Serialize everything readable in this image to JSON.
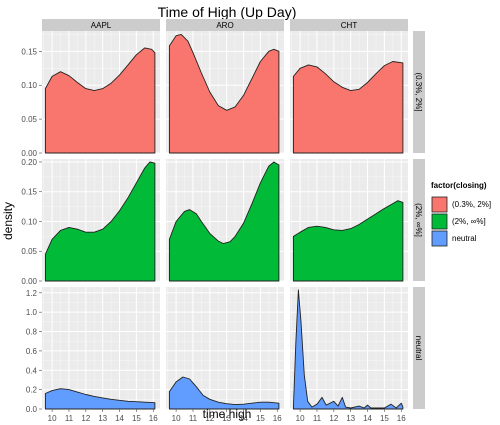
{
  "chart_data": {
    "type": "area",
    "title": "Time of High (Up Day)",
    "xlabel": "time.high",
    "ylabel": "density",
    "x_ticks": [
      10,
      11,
      12,
      13,
      14,
      15,
      16
    ],
    "xlim": [
      9.4,
      16.4
    ],
    "columns": [
      "AAPL",
      "ARO",
      "CHT"
    ],
    "rows": [
      {
        "label": "(0.3%, 2%]",
        "color": "#f8766d",
        "ylim": [
          0,
          0.18
        ],
        "ticks": [
          0.0,
          0.05,
          0.1,
          0.15
        ],
        "tick_labels": [
          "0.00",
          "0.05",
          "0.10",
          "0.15"
        ]
      },
      {
        "label": "(2%, ∞%]",
        "color": "#00ba38",
        "ylim": [
          0,
          0.205
        ],
        "ticks": [
          0.0,
          0.05,
          0.1,
          0.15,
          0.2
        ],
        "tick_labels": [
          "0.00",
          "0.05",
          "0.10",
          "0.15",
          "0.20"
        ]
      },
      {
        "label": "neutral",
        "color": "#619cff",
        "ylim": [
          0,
          1.26
        ],
        "ticks": [
          0.0,
          0.2,
          0.4,
          0.6,
          0.8,
          1.0,
          1.2
        ],
        "tick_labels": [
          "0.0",
          "0.2",
          "0.4",
          "0.6",
          "0.8",
          "1.0",
          "1.2"
        ]
      }
    ],
    "legend": {
      "title": "factor(closing)",
      "placement": "right",
      "entries": [
        {
          "label": "(0.3%, 2%]",
          "color": "#f8766d"
        },
        {
          "label": "(2%, ∞%]",
          "color": "#00ba38"
        },
        {
          "label": "neutral",
          "color": "#619cff"
        }
      ]
    },
    "panels": [
      {
        "column": "AAPL",
        "row": "(0.3%, 2%]",
        "points": [
          [
            9.6,
            0.095
          ],
          [
            10,
            0.113
          ],
          [
            10.5,
            0.12
          ],
          [
            11,
            0.114
          ],
          [
            11.5,
            0.104
          ],
          [
            12,
            0.095
          ],
          [
            12.5,
            0.092
          ],
          [
            13,
            0.095
          ],
          [
            13.5,
            0.103
          ],
          [
            14,
            0.115
          ],
          [
            14.5,
            0.13
          ],
          [
            15,
            0.145
          ],
          [
            15.5,
            0.155
          ],
          [
            15.9,
            0.153
          ],
          [
            16.1,
            0.148
          ]
        ]
      },
      {
        "column": "ARO",
        "row": "(0.3%, 2%]",
        "points": [
          [
            9.6,
            0.158
          ],
          [
            10,
            0.173
          ],
          [
            10.3,
            0.175
          ],
          [
            10.7,
            0.165
          ],
          [
            11,
            0.148
          ],
          [
            11.5,
            0.118
          ],
          [
            12,
            0.09
          ],
          [
            12.5,
            0.07
          ],
          [
            13,
            0.063
          ],
          [
            13.5,
            0.068
          ],
          [
            14,
            0.085
          ],
          [
            14.5,
            0.11
          ],
          [
            15,
            0.135
          ],
          [
            15.5,
            0.15
          ],
          [
            15.8,
            0.153
          ],
          [
            16.1,
            0.15
          ]
        ]
      },
      {
        "column": "CHT",
        "row": "(0.3%, 2%]",
        "points": [
          [
            9.6,
            0.113
          ],
          [
            10,
            0.125
          ],
          [
            10.5,
            0.13
          ],
          [
            11,
            0.127
          ],
          [
            11.5,
            0.117
          ],
          [
            12,
            0.105
          ],
          [
            12.5,
            0.097
          ],
          [
            13,
            0.092
          ],
          [
            13.5,
            0.094
          ],
          [
            14,
            0.104
          ],
          [
            14.5,
            0.117
          ],
          [
            15,
            0.129
          ],
          [
            15.5,
            0.135
          ],
          [
            16.1,
            0.133
          ]
        ]
      },
      {
        "column": "AAPL",
        "row": "(2%, ∞%]",
        "points": [
          [
            9.6,
            0.045
          ],
          [
            10,
            0.07
          ],
          [
            10.5,
            0.085
          ],
          [
            11,
            0.09
          ],
          [
            11.5,
            0.087
          ],
          [
            12,
            0.082
          ],
          [
            12.5,
            0.082
          ],
          [
            13,
            0.087
          ],
          [
            13.5,
            0.1
          ],
          [
            14,
            0.118
          ],
          [
            14.5,
            0.14
          ],
          [
            15,
            0.165
          ],
          [
            15.5,
            0.19
          ],
          [
            15.8,
            0.2
          ],
          [
            16.1,
            0.198
          ]
        ]
      },
      {
        "column": "ARO",
        "row": "(2%, ∞%]",
        "points": [
          [
            9.6,
            0.07
          ],
          [
            10,
            0.1
          ],
          [
            10.5,
            0.117
          ],
          [
            10.8,
            0.12
          ],
          [
            11.2,
            0.113
          ],
          [
            11.5,
            0.1
          ],
          [
            12,
            0.08
          ],
          [
            12.5,
            0.067
          ],
          [
            12.8,
            0.063
          ],
          [
            13.2,
            0.066
          ],
          [
            13.5,
            0.075
          ],
          [
            14,
            0.097
          ],
          [
            14.5,
            0.13
          ],
          [
            15,
            0.165
          ],
          [
            15.5,
            0.193
          ],
          [
            15.8,
            0.2
          ],
          [
            16.1,
            0.195
          ]
        ]
      },
      {
        "column": "CHT",
        "row": "(2%, ∞%]",
        "points": [
          [
            9.6,
            0.075
          ],
          [
            10,
            0.082
          ],
          [
            10.5,
            0.09
          ],
          [
            11,
            0.092
          ],
          [
            11.5,
            0.09
          ],
          [
            12,
            0.086
          ],
          [
            12.5,
            0.085
          ],
          [
            13,
            0.088
          ],
          [
            13.5,
            0.095
          ],
          [
            14,
            0.104
          ],
          [
            14.5,
            0.113
          ],
          [
            15,
            0.122
          ],
          [
            15.5,
            0.13
          ],
          [
            15.8,
            0.135
          ],
          [
            16.1,
            0.132
          ]
        ]
      },
      {
        "column": "AAPL",
        "row": "neutral",
        "points": [
          [
            9.6,
            0.16
          ],
          [
            10,
            0.19
          ],
          [
            10.5,
            0.21
          ],
          [
            11,
            0.2
          ],
          [
            11.5,
            0.175
          ],
          [
            12,
            0.15
          ],
          [
            12.5,
            0.13
          ],
          [
            13,
            0.115
          ],
          [
            13.5,
            0.1
          ],
          [
            14,
            0.09
          ],
          [
            14.5,
            0.08
          ],
          [
            15,
            0.075
          ],
          [
            15.5,
            0.07
          ],
          [
            16.1,
            0.065
          ]
        ]
      },
      {
        "column": "ARO",
        "row": "neutral",
        "points": [
          [
            9.6,
            0.18
          ],
          [
            10,
            0.28
          ],
          [
            10.4,
            0.33
          ],
          [
            10.8,
            0.31
          ],
          [
            11.2,
            0.23
          ],
          [
            11.6,
            0.14
          ],
          [
            12,
            0.1
          ],
          [
            12.5,
            0.07
          ],
          [
            13,
            0.055
          ],
          [
            13.5,
            0.045
          ],
          [
            14,
            0.05
          ],
          [
            14.5,
            0.06
          ],
          [
            15,
            0.07
          ],
          [
            15.5,
            0.07
          ],
          [
            16.1,
            0.06
          ]
        ]
      },
      {
        "column": "CHT",
        "row": "neutral",
        "points": [
          [
            9.6,
            0.02
          ],
          [
            9.75,
            0.7
          ],
          [
            9.9,
            1.23
          ],
          [
            10.05,
            0.9
          ],
          [
            10.25,
            0.35
          ],
          [
            10.45,
            0.08
          ],
          [
            10.7,
            0.02
          ],
          [
            11,
            0.05
          ],
          [
            11.3,
            0.12
          ],
          [
            11.55,
            0.04
          ],
          [
            12,
            0.08
          ],
          [
            12.25,
            0.03
          ],
          [
            12.5,
            0.12
          ],
          [
            12.7,
            0.02
          ],
          [
            13,
            0.01
          ],
          [
            13.5,
            0.03
          ],
          [
            13.8,
            0.01
          ],
          [
            14,
            0.04
          ],
          [
            14.2,
            0.01
          ],
          [
            14.5,
            0.01
          ],
          [
            15,
            0.01
          ],
          [
            15.4,
            0.05
          ],
          [
            15.7,
            0.01
          ],
          [
            16,
            0.06
          ],
          [
            16.1,
            0.02
          ]
        ]
      }
    ]
  }
}
